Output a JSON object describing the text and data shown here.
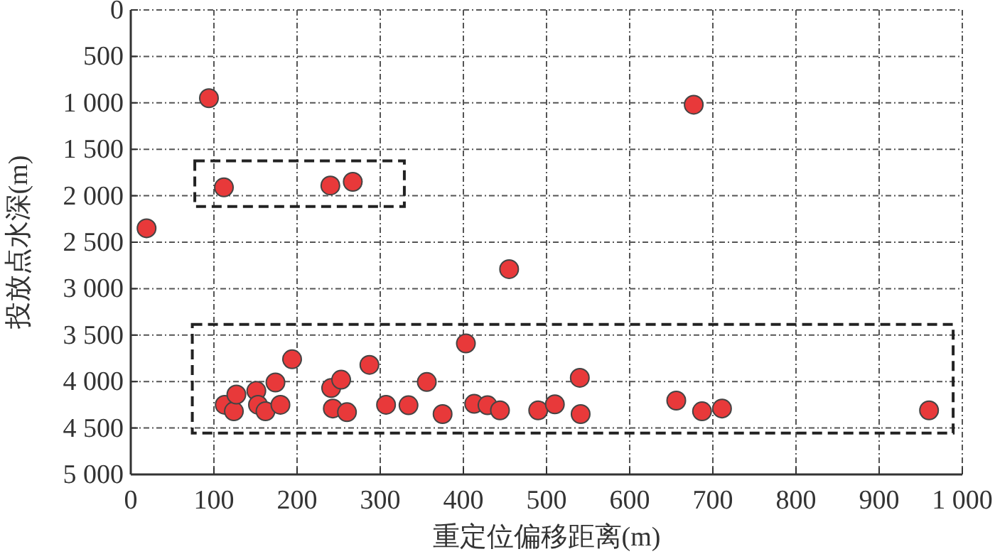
{
  "chart_data": {
    "type": "scatter",
    "xlabel": "重定位偏移距离(m)",
    "ylabel": "投放点水深(m)",
    "xlim": [
      0,
      1000
    ],
    "ylim": [
      5000,
      0
    ],
    "xticks": [
      0,
      100,
      200,
      300,
      400,
      500,
      600,
      700,
      800,
      900,
      {
        "value": 1000,
        "label": "1 000"
      }
    ],
    "yticks": [
      0,
      500,
      {
        "value": 1000,
        "label": "1 000"
      },
      {
        "value": 1500,
        "label": "1 500"
      },
      {
        "value": 2000,
        "label": "2 000"
      },
      {
        "value": 2500,
        "label": "2 500"
      },
      {
        "value": 3000,
        "label": "3 000"
      },
      {
        "value": 3500,
        "label": "3 500"
      },
      {
        "value": 4000,
        "label": "4 000"
      },
      {
        "value": 4500,
        "label": "4 500"
      },
      {
        "value": 5000,
        "label": "5 000"
      }
    ],
    "grid": true,
    "marker": "circle",
    "series": [
      {
        "color": "#e8393a",
        "x": [
          94,
          677,
          112,
          240,
          267,
          19,
          455,
          113,
          124,
          127,
          151,
          153,
          162,
          174,
          180,
          194,
          241,
          253,
          243,
          260,
          287,
          307,
          334,
          356,
          375,
          403,
          413,
          429,
          444,
          490,
          510,
          540,
          541,
          656,
          687,
          711,
          960
        ],
        "values": [
          950,
          1020,
          1910,
          1890,
          1850,
          2350,
          2790,
          4250,
          4320,
          4140,
          4100,
          4250,
          4320,
          4010,
          4250,
          3760,
          4070,
          3980,
          4290,
          4330,
          3820,
          4250,
          4255,
          4005,
          4350,
          3590,
          4240,
          4255,
          4310,
          4310,
          4245,
          3960,
          4350,
          4205,
          4320,
          4290,
          4310
        ]
      }
    ]
  }
}
